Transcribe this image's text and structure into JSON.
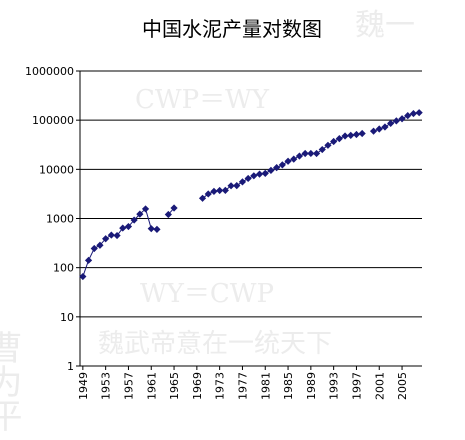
{
  "chart_data": {
    "type": "line",
    "title": "中国水泥产量对数图",
    "annotations": [
      "魏一",
      "CWP＝WY",
      "WY＝CWP",
      "魏武帝意在一统天下",
      "曹为平"
    ],
    "x": [
      1949,
      1950,
      1951,
      1952,
      1953,
      1954,
      1955,
      1956,
      1957,
      1958,
      1959,
      1960,
      1961,
      1962,
      1963,
      1964,
      1965,
      1966,
      1967,
      1968,
      1969,
      1970,
      1971,
      1972,
      1973,
      1974,
      1975,
      1976,
      1977,
      1978,
      1979,
      1980,
      1981,
      1982,
      1983,
      1984,
      1985,
      1986,
      1987,
      1988,
      1989,
      1990,
      1991,
      1992,
      1993,
      1994,
      1995,
      1996,
      1997,
      1998,
      1999,
      2000,
      2001,
      2002,
      2003,
      2004,
      2005,
      2006,
      2007,
      2008
    ],
    "series": [
      {
        "name": "水泥产量",
        "color": "#1a1a78",
        "values": [
          66,
          141,
          245,
          286,
          388,
          460,
          450,
          639,
          686,
          930,
          1227,
          1565,
          621,
          600,
          null,
          1207,
          1634,
          null,
          null,
          null,
          null,
          2575,
          3158,
          3561,
          3707,
          3739,
          4626,
          4670,
          5565,
          6524,
          7390,
          7986,
          8290,
          9520,
          10825,
          12302,
          14595,
          16156,
          18625,
          21014,
          21029,
          20971,
          25261,
          30822,
          36788,
          42118,
          47561,
          49119,
          51174,
          53600,
          null,
          59700,
          66100,
          72500,
          86200,
          96700,
          106900,
          123700,
          136100,
          142000
        ]
      }
    ],
    "xlim": [
      1948.5,
      2008.5
    ],
    "xticks": [
      1949,
      1953,
      1957,
      1961,
      1965,
      1969,
      1973,
      1977,
      1981,
      1985,
      1989,
      1993,
      1997,
      2001,
      2005
    ],
    "ylim": [
      1,
      1000000
    ],
    "yticks": [
      1,
      10,
      100,
      1000,
      10000,
      100000,
      1000000
    ],
    "log_y": true,
    "grid": true
  }
}
